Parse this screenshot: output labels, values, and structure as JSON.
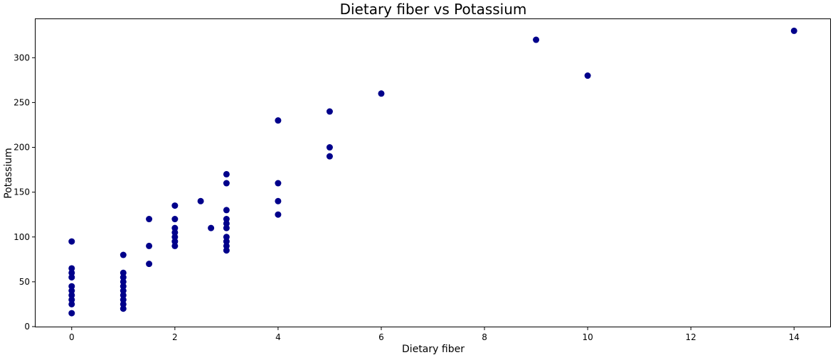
{
  "chart_data": {
    "type": "scatter",
    "title": "Dietary fiber vs Potassium",
    "xlabel": "Dietary fiber",
    "ylabel": "Potassium",
    "xlim": [
      -0.7,
      14.7
    ],
    "ylim": [
      0,
      343
    ],
    "xticks": [
      0,
      2,
      4,
      6,
      8,
      10,
      12,
      14
    ],
    "yticks": [
      0,
      50,
      100,
      150,
      200,
      250,
      300
    ],
    "grid": false,
    "marker_color": "#00008b",
    "series": [
      {
        "points": [
          [
            0,
            15
          ],
          [
            0,
            25
          ],
          [
            0,
            30
          ],
          [
            0,
            35
          ],
          [
            0,
            40
          ],
          [
            0,
            45
          ],
          [
            0,
            55
          ],
          [
            0,
            60
          ],
          [
            0,
            65
          ],
          [
            0,
            95
          ],
          [
            1,
            20
          ],
          [
            1,
            25
          ],
          [
            1,
            30
          ],
          [
            1,
            35
          ],
          [
            1,
            40
          ],
          [
            1,
            45
          ],
          [
            1,
            50
          ],
          [
            1,
            55
          ],
          [
            1,
            60
          ],
          [
            1,
            80
          ],
          [
            1.5,
            70
          ],
          [
            1.5,
            90
          ],
          [
            1.5,
            120
          ],
          [
            2,
            90
          ],
          [
            2,
            95
          ],
          [
            2,
            100
          ],
          [
            2,
            105
          ],
          [
            2,
            110
          ],
          [
            2,
            120
          ],
          [
            2,
            135
          ],
          [
            2.5,
            140
          ],
          [
            2.7,
            110
          ],
          [
            3,
            85
          ],
          [
            3,
            90
          ],
          [
            3,
            95
          ],
          [
            3,
            100
          ],
          [
            3,
            110
          ],
          [
            3,
            115
          ],
          [
            3,
            120
          ],
          [
            3,
            130
          ],
          [
            3,
            160
          ],
          [
            3,
            170
          ],
          [
            4,
            125
          ],
          [
            4,
            140
          ],
          [
            4,
            160
          ],
          [
            4,
            230
          ],
          [
            5,
            190
          ],
          [
            5,
            200
          ],
          [
            5,
            240
          ],
          [
            6,
            260
          ],
          [
            9,
            320
          ],
          [
            10,
            280
          ],
          [
            14,
            330
          ]
        ]
      }
    ]
  }
}
